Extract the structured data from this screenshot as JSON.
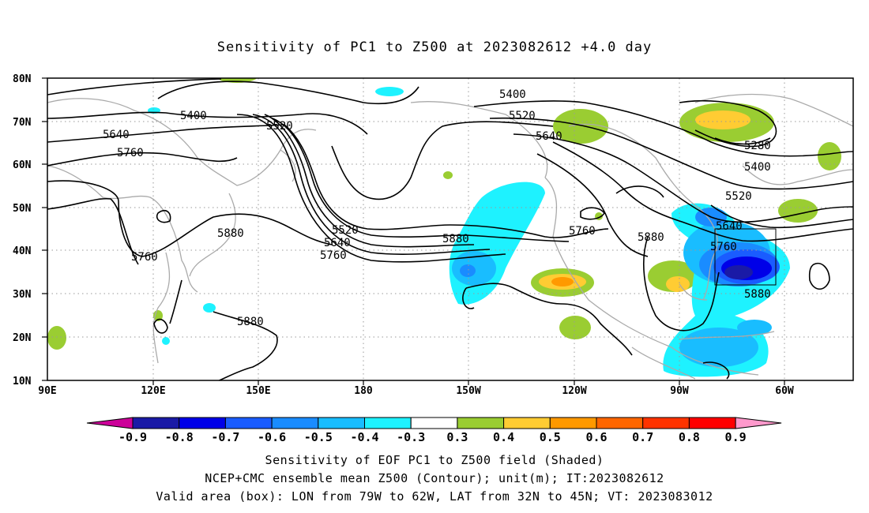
{
  "title": "Sensitivity of PC1 to Z500 at 2023082612 +4.0 day",
  "axes": {
    "lat_labels": [
      "80N",
      "70N",
      "60N",
      "50N",
      "40N",
      "30N",
      "20N",
      "10N"
    ],
    "lon_labels": [
      "90E",
      "120E",
      "150E",
      "180",
      "150W",
      "120W",
      "90W",
      "60W"
    ]
  },
  "contour_labels": [
    "5400",
    "5520",
    "5640",
    "5760",
    "5880",
    "5280"
  ],
  "valid_box": {
    "lon_from": "79W",
    "lon_to": "62W",
    "lat_from": "32N",
    "lat_to": "45N"
  },
  "colorbar": {
    "labels": [
      "-0.9",
      "-0.8",
      "-0.7",
      "-0.6",
      "-0.5",
      "-0.4",
      "-0.3",
      "0.3",
      "0.4",
      "0.5",
      "0.6",
      "0.7",
      "0.8",
      "0.9"
    ],
    "colors": [
      "#1a1aa6",
      "#0000e8",
      "#1a5cff",
      "#1a8cff",
      "#19bdff",
      "#1ef2ff",
      "#ffffff",
      "#9acd32",
      "#ffcc33",
      "#ff9900",
      "#ff6600",
      "#ff3300",
      "#ff0000"
    ],
    "low_triangle_color": "#cc0099",
    "high_triangle_color": "#ff99cc"
  },
  "captions": {
    "line1": "Sensitivity of EOF PC1 to Z500 field (Shaded)",
    "line2": "NCEP+CMC ensemble mean Z500 (Contour); unit(m); IT:2023082612",
    "line3": "Valid area (box): LON from 79W to 62W, LAT from 32N to 45N; VT: 2023083012"
  }
}
